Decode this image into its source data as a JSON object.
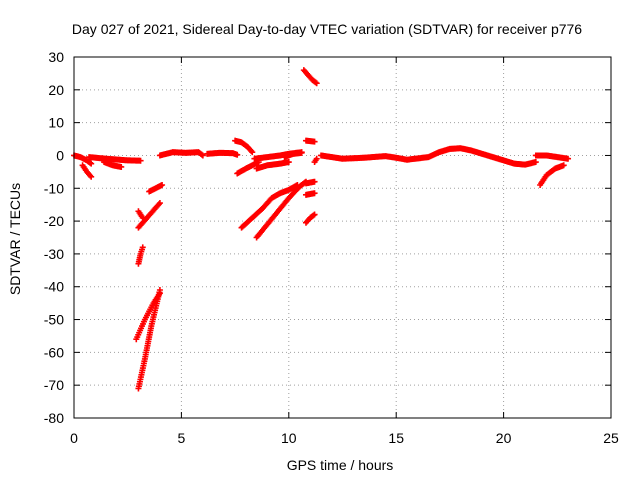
{
  "chart_data": {
    "type": "scatter",
    "title": "Day 027 of 2021, Sidereal Day-to-day VTEC variation (SDTVAR) for receiver p776",
    "xlabel": "GPS time / hours",
    "ylabel": "SDTVAR / TECUs",
    "xlim": [
      0,
      25
    ],
    "ylim": [
      -80,
      30
    ],
    "xticks": [
      0,
      5,
      10,
      15,
      20,
      25
    ],
    "yticks": [
      -80,
      -70,
      -60,
      -50,
      -40,
      -30,
      -20,
      -10,
      0,
      10,
      20,
      30
    ],
    "grid": true,
    "marker": "+",
    "color": "#ff0000",
    "series": [
      {
        "segments": [
          [
            [
              0.0,
              0.0
            ],
            [
              0.3,
              -0.5
            ],
            [
              0.6,
              -1.5
            ],
            [
              0.8,
              -2.5
            ]
          ],
          [
            [
              0.4,
              -3.0
            ],
            [
              0.6,
              -5.0
            ],
            [
              0.8,
              -6.5
            ]
          ],
          [
            [
              0.7,
              -0.5
            ],
            [
              1.5,
              -1.0
            ],
            [
              2.5,
              -1.5
            ],
            [
              3.1,
              -1.6
            ]
          ],
          [
            [
              1.4,
              -2.0
            ],
            [
              1.8,
              -3.0
            ],
            [
              2.2,
              -3.5
            ]
          ],
          [
            [
              3.0,
              -17.0
            ],
            [
              3.1,
              -18.0
            ],
            [
              3.2,
              -19.0
            ]
          ],
          [
            [
              3.0,
              -22.0
            ],
            [
              3.4,
              -19.0
            ],
            [
              3.8,
              -16.0
            ],
            [
              4.0,
              -14.5
            ]
          ],
          [
            [
              3.0,
              -33.0
            ],
            [
              3.1,
              -30.0
            ],
            [
              3.2,
              -28.0
            ]
          ],
          [
            [
              3.5,
              -11.0
            ],
            [
              3.8,
              -10.0
            ],
            [
              4.1,
              -9.0
            ]
          ],
          [
            [
              2.9,
              -56.0
            ],
            [
              3.3,
              -50.0
            ],
            [
              3.7,
              -45.0
            ],
            [
              4.0,
              -42.0
            ]
          ],
          [
            [
              3.0,
              -71.0
            ],
            [
              3.3,
              -62.0
            ],
            [
              3.6,
              -52.0
            ],
            [
              4.0,
              -41.0
            ]
          ],
          [
            [
              4.0,
              0.0
            ],
            [
              4.6,
              1.0
            ],
            [
              5.2,
              0.8
            ],
            [
              5.8,
              1.0
            ],
            [
              6.0,
              0.0
            ]
          ],
          [
            [
              6.2,
              0.5
            ],
            [
              6.8,
              0.8
            ],
            [
              7.4,
              0.7
            ],
            [
              7.6,
              0.2
            ]
          ],
          [
            [
              7.5,
              4.5
            ],
            [
              7.8,
              4.0
            ],
            [
              8.1,
              2.5
            ],
            [
              8.3,
              1.0
            ]
          ],
          [
            [
              7.6,
              -5.5
            ],
            [
              8.0,
              -4.0
            ],
            [
              8.3,
              -3.0
            ],
            [
              8.6,
              -2.0
            ]
          ],
          [
            [
              7.8,
              -22.0
            ],
            [
              8.3,
              -19.0
            ],
            [
              8.8,
              -16.0
            ],
            [
              9.2,
              -13.0
            ],
            [
              9.6,
              -11.5
            ],
            [
              10.0,
              -10.5
            ],
            [
              10.4,
              -9.0
            ]
          ],
          [
            [
              8.5,
              -25.0
            ],
            [
              9.0,
              -21.0
            ],
            [
              9.5,
              -17.0
            ],
            [
              10.0,
              -13.0
            ],
            [
              10.5,
              -9.5
            ],
            [
              10.8,
              -8.0
            ]
          ],
          [
            [
              8.5,
              -4.0
            ],
            [
              9.0,
              -3.0
            ],
            [
              9.6,
              -2.5
            ],
            [
              10.0,
              -2.0
            ]
          ],
          [
            [
              8.4,
              -1.0
            ],
            [
              9.0,
              -0.5
            ],
            [
              9.6,
              0.0
            ],
            [
              10.0,
              0.5
            ],
            [
              10.6,
              1.0
            ]
          ],
          [
            [
              9.8,
              -0.5
            ],
            [
              10.2,
              0.5
            ],
            [
              10.6,
              0.8
            ]
          ],
          [
            [
              10.7,
              26.0
            ],
            [
              10.9,
              24.5
            ],
            [
              11.1,
              23.0
            ],
            [
              11.3,
              22.0
            ]
          ],
          [
            [
              10.8,
              4.5
            ],
            [
              11.2,
              4.2
            ]
          ],
          [
            [
              10.8,
              -12.0
            ],
            [
              11.2,
              -11.5
            ]
          ],
          [
            [
              10.8,
              -8.5
            ],
            [
              11.2,
              -8.0
            ]
          ],
          [
            [
              10.8,
              -20.5
            ],
            [
              11.0,
              -19.0
            ],
            [
              11.2,
              -18.0
            ]
          ],
          [
            [
              11.2,
              -2.0
            ],
            [
              11.3,
              -1.0
            ]
          ],
          [
            [
              11.5,
              0.0
            ],
            [
              12.5,
              -1.0
            ],
            [
              13.5,
              -0.7
            ],
            [
              14.5,
              -0.2
            ],
            [
              15.0,
              -0.7
            ],
            [
              15.5,
              -1.3
            ],
            [
              16.5,
              -0.5
            ],
            [
              17.0,
              1.0
            ],
            [
              17.5,
              2.0
            ],
            [
              18.0,
              2.2
            ],
            [
              18.5,
              1.5
            ],
            [
              19.0,
              0.5
            ],
            [
              19.5,
              -0.5
            ],
            [
              20.0,
              -1.5
            ],
            [
              20.5,
              -2.5
            ],
            [
              21.0,
              -2.8
            ],
            [
              21.5,
              -2.0
            ]
          ],
          [
            [
              21.5,
              0.0
            ],
            [
              22.0,
              0.0
            ],
            [
              22.5,
              -0.5
            ],
            [
              23.0,
              -1.0
            ]
          ],
          [
            [
              21.7,
              -9.0
            ],
            [
              22.0,
              -6.0
            ],
            [
              22.4,
              -4.0
            ],
            [
              22.8,
              -3.0
            ]
          ]
        ]
      }
    ]
  }
}
